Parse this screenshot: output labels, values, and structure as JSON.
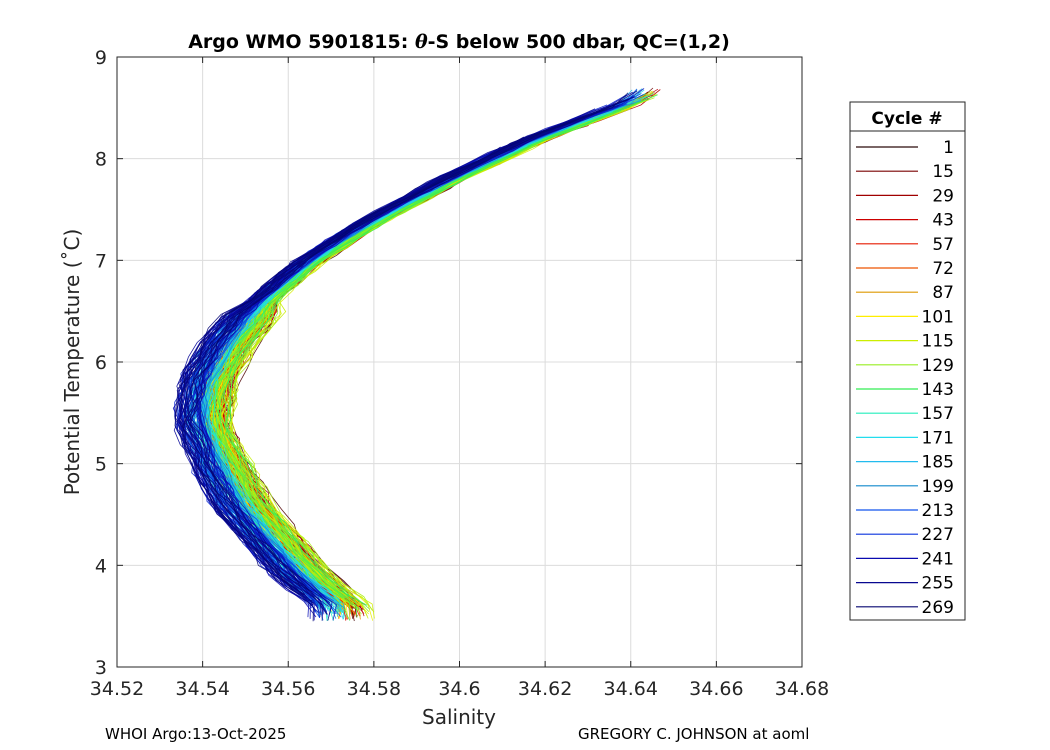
{
  "chart_data": {
    "type": "line",
    "title_prefix": "Argo WMO 5901815: ",
    "title_symbol": "θ",
    "title_suffix": "-S below 500 dbar,  QC=(1,2)",
    "xlabel": "Salinity",
    "ylabel": "Potential Temperature (˚C)",
    "xlim": [
      34.52,
      34.68
    ],
    "ylim": [
      3,
      9
    ],
    "grid": true,
    "x_ticks": [
      34.52,
      34.54,
      34.56,
      34.58,
      34.6,
      34.62,
      34.64,
      34.66,
      34.68
    ],
    "x_tick_labels": [
      "34.52",
      "34.54",
      "34.56",
      "34.58",
      "34.6",
      "34.62",
      "34.64",
      "34.66",
      "34.68"
    ],
    "y_ticks": [
      3,
      4,
      5,
      6,
      7,
      8,
      9
    ],
    "y_tick_labels": [
      "3",
      "4",
      "5",
      "6",
      "7",
      "8",
      "9"
    ],
    "legend": {
      "title": "Cycle #",
      "placement": "right-outside",
      "entries": [
        {
          "label": "1",
          "color": "#2a0a0a"
        },
        {
          "label": "15",
          "color": "#7a0000"
        },
        {
          "label": "29",
          "color": "#a00000"
        },
        {
          "label": "43",
          "color": "#cc0000"
        },
        {
          "label": "57",
          "color": "#e61a00"
        },
        {
          "label": "72",
          "color": "#ee5500"
        },
        {
          "label": "87",
          "color": "#dd9900"
        },
        {
          "label": "101",
          "color": "#ffee00"
        },
        {
          "label": "115",
          "color": "#ccee00"
        },
        {
          "label": "129",
          "color": "#99ee22"
        },
        {
          "label": "143",
          "color": "#33ee55"
        },
        {
          "label": "157",
          "color": "#22eebb"
        },
        {
          "label": "171",
          "color": "#22ddee"
        },
        {
          "label": "185",
          "color": "#22bbee"
        },
        {
          "label": "199",
          "color": "#1188cc"
        },
        {
          "label": "213",
          "color": "#1155ee"
        },
        {
          "label": "227",
          "color": "#0a33dd"
        },
        {
          "label": "241",
          "color": "#0a0ab0"
        },
        {
          "label": "255",
          "color": "#080890"
        },
        {
          "label": "269",
          "color": "#060670"
        }
      ]
    },
    "series_template": {
      "note": "Each profile follows the theta-S curve below, sampled deep to shallow",
      "theta": [
        3.6,
        3.8,
        4.0,
        4.3,
        4.6,
        5.0,
        5.4,
        5.8,
        6.2,
        6.6,
        7.0,
        7.4,
        7.8,
        8.2,
        8.6
      ],
      "salinity": [
        34.572,
        34.566,
        34.561,
        34.555,
        34.549,
        34.544,
        34.54,
        34.541,
        34.546,
        34.554,
        34.565,
        34.58,
        34.598,
        34.618,
        34.643
      ]
    },
    "profile_count": 269
  },
  "footer": {
    "left": "WHOI Argo:13-Oct-2025",
    "right": "GREGORY C. JOHNSON at aoml"
  }
}
